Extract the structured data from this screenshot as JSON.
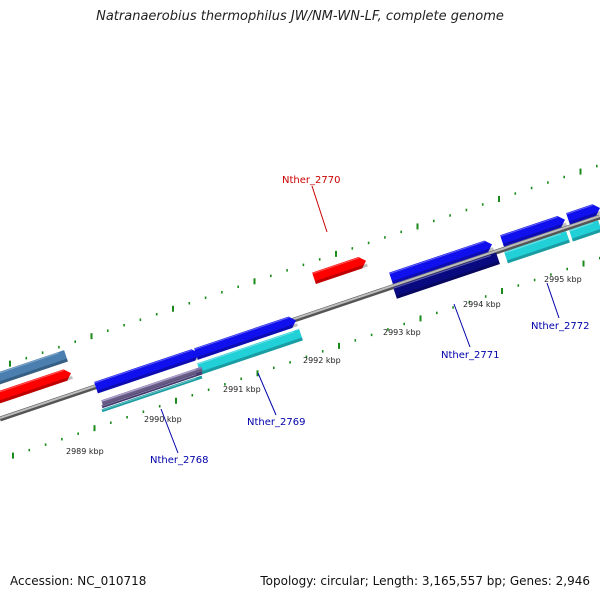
{
  "title": "Natranaerobius thermophilus JW/NM-WN-LF, complete genome",
  "footer": {
    "accession": "Accession: NC_010718",
    "summary": "Topology: circular; Length: 3,165,557 bp; Genes: 2,946"
  },
  "colors": {
    "tick": "#1a8a1a",
    "backbone": "#888888",
    "highlight_gene": "#ff0000",
    "label_highlight": "#cc0000",
    "label_normal": "#0000aa",
    "cds_blue": "#1010ee",
    "cds_cyan": "#22d0d8",
    "cds_navy": "#0a0a80",
    "cds_steel": "#4a7fb0",
    "cds_purple": "#8a7ab0"
  },
  "scale": {
    "tick_labels": [
      {
        "kbp": 2989,
        "text": "2989 kbp"
      },
      {
        "kbp": 2990,
        "text": "2990 kbp"
      },
      {
        "kbp": 2991,
        "text": "2991 kbp"
      },
      {
        "kbp": 2992,
        "text": "2992 kbp"
      },
      {
        "kbp": 2993,
        "text": "2993 kbp"
      },
      {
        "kbp": 2994,
        "text": "2994 kbp"
      },
      {
        "kbp": 2995,
        "text": "2995 kbp"
      }
    ]
  },
  "genes": [
    {
      "label": "Nther_2770",
      "highlight": true
    },
    {
      "label": "Nther_2768",
      "highlight": false
    },
    {
      "label": "Nther_2769",
      "highlight": false
    },
    {
      "label": "Nther_2771",
      "highlight": false
    },
    {
      "label": "Nther_2772",
      "highlight": false
    }
  ]
}
